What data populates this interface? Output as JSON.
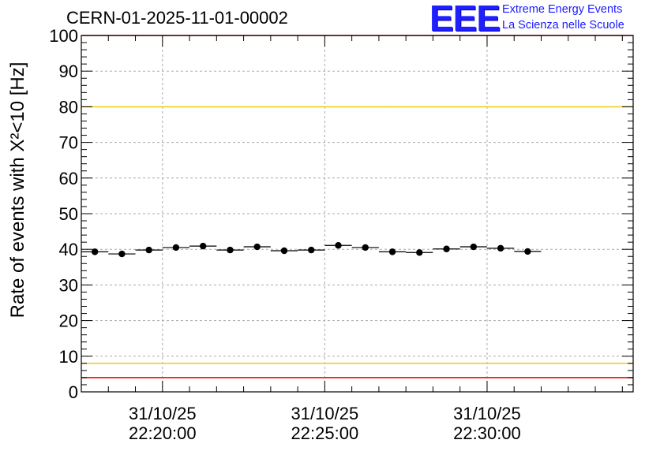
{
  "header": {
    "run_title": "CERN-01-2025-11-01-00002",
    "logo_text": "EEE",
    "logo_line1": "Extreme Energy Events",
    "logo_line2": "La Scienza nelle Scuole"
  },
  "chart_data": {
    "type": "scatter",
    "title": "CERN-01-2025-11-01-00002",
    "xlabel": "",
    "ylabel": "Rate of events with X²<10 [Hz]",
    "ylim": [
      0,
      100
    ],
    "xlim": [
      "31/10/25 22:17:30",
      "31/10/25 22:34:30"
    ],
    "y_ticks": [
      0,
      10,
      20,
      30,
      40,
      50,
      60,
      70,
      80,
      90,
      100
    ],
    "x_ticks": [
      {
        "x": "31/10/25 22:20:00",
        "date": "31/10/25",
        "time": "22:20:00"
      },
      {
        "x": "31/10/25 22:25:00",
        "date": "31/10/25",
        "time": "22:25:00"
      },
      {
        "x": "31/10/25 22:30:00",
        "date": "31/10/25",
        "time": "22:30:00"
      }
    ],
    "grid": true,
    "bin_width_s": 50,
    "points": [
      {
        "x": "31/10/25 22:17:55",
        "y": 39.3
      },
      {
        "x": "31/10/25 22:18:45",
        "y": 38.7
      },
      {
        "x": "31/10/25 22:19:35",
        "y": 39.8
      },
      {
        "x": "31/10/25 22:20:25",
        "y": 40.5
      },
      {
        "x": "31/10/25 22:21:15",
        "y": 40.9
      },
      {
        "x": "31/10/25 22:22:05",
        "y": 39.8
      },
      {
        "x": "31/10/25 22:22:55",
        "y": 40.7
      },
      {
        "x": "31/10/25 22:23:45",
        "y": 39.6
      },
      {
        "x": "31/10/25 22:24:35",
        "y": 39.8
      },
      {
        "x": "31/10/25 22:25:25",
        "y": 41.1
      },
      {
        "x": "31/10/25 22:26:15",
        "y": 40.5
      },
      {
        "x": "31/10/25 22:27:05",
        "y": 39.3
      },
      {
        "x": "31/10/25 22:27:55",
        "y": 39.1
      },
      {
        "x": "31/10/25 22:28:45",
        "y": 40.1
      },
      {
        "x": "31/10/25 22:29:35",
        "y": 40.7
      },
      {
        "x": "31/10/25 22:30:25",
        "y": 40.3
      },
      {
        "x": "31/10/25 22:31:15",
        "y": 39.4
      }
    ],
    "reference_lines": [
      {
        "y": 100,
        "color": "#ff0000"
      },
      {
        "y": 80,
        "color": "#f0d020"
      },
      {
        "y": 8,
        "color": "#f0d020"
      },
      {
        "y": 4,
        "color": "#ff0000"
      }
    ],
    "colors": {
      "marker": "#000000",
      "grid": "#aaaaaa",
      "frame": "#000000"
    }
  }
}
